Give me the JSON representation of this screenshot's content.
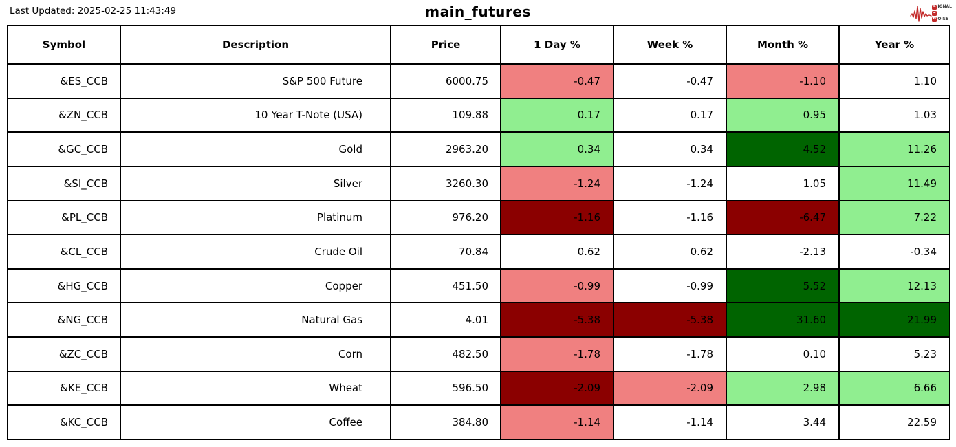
{
  "page": {
    "last_updated": "Last Updated: 2025-02-25 11:43:49",
    "title": "main_futures"
  },
  "logo": {
    "line1_boxed": "S",
    "line1_rest": "IGNAL",
    "line2_boxed": "2",
    "line2_rest": "",
    "line3_boxed": "N",
    "line3_rest": "OISE"
  },
  "colors": {
    "positive_light": "#90ee90",
    "positive_dark": "#006400",
    "negative_light": "#f08080",
    "negative_dark": "#8b0000",
    "logo_red": "#c32a2a",
    "border": "#000000"
  },
  "table": {
    "columns": [
      "Symbol",
      "Description",
      "Price",
      "1 Day %",
      "Week %",
      "Month %",
      "Year %"
    ],
    "rows": [
      {
        "symbol": "&ES_CCB",
        "description": "S&P 500 Future",
        "price": "6000.75",
        "values": [
          "-0.47",
          "-0.47",
          "-1.10",
          "1.10"
        ],
        "value_colors": [
          "negative_light",
          "none",
          "negative_light",
          "none"
        ]
      },
      {
        "symbol": "&ZN_CCB",
        "description": "10 Year T-Note (USA)",
        "price": "109.88",
        "values": [
          "0.17",
          "0.17",
          "0.95",
          "1.03"
        ],
        "value_colors": [
          "positive_light",
          "none",
          "positive_light",
          "none"
        ]
      },
      {
        "symbol": "&GC_CCB",
        "description": "Gold",
        "price": "2963.20",
        "values": [
          "0.34",
          "0.34",
          "4.52",
          "11.26"
        ],
        "value_colors": [
          "positive_light",
          "none",
          "positive_dark",
          "positive_light"
        ]
      },
      {
        "symbol": "&SI_CCB",
        "description": "Silver",
        "price": "3260.30",
        "values": [
          "-1.24",
          "-1.24",
          "1.05",
          "11.49"
        ],
        "value_colors": [
          "negative_light",
          "none",
          "none",
          "positive_light"
        ]
      },
      {
        "symbol": "&PL_CCB",
        "description": "Platinum",
        "price": "976.20",
        "values": [
          "-1.16",
          "-1.16",
          "-6.47",
          "7.22"
        ],
        "value_colors": [
          "negative_dark",
          "none",
          "negative_dark",
          "positive_light"
        ]
      },
      {
        "symbol": "&CL_CCB",
        "description": "Crude Oil",
        "price": "70.84",
        "values": [
          "0.62",
          "0.62",
          "-2.13",
          "-0.34"
        ],
        "value_colors": [
          "none",
          "none",
          "none",
          "none"
        ]
      },
      {
        "symbol": "&HG_CCB",
        "description": "Copper",
        "price": "451.50",
        "values": [
          "-0.99",
          "-0.99",
          "5.52",
          "12.13"
        ],
        "value_colors": [
          "negative_light",
          "none",
          "positive_dark",
          "positive_light"
        ]
      },
      {
        "symbol": "&NG_CCB",
        "description": "Natural Gas",
        "price": "4.01",
        "values": [
          "-5.38",
          "-5.38",
          "31.60",
          "21.99"
        ],
        "value_colors": [
          "negative_dark",
          "negative_dark",
          "positive_dark",
          "positive_dark"
        ]
      },
      {
        "symbol": "&ZC_CCB",
        "description": "Corn",
        "price": "482.50",
        "values": [
          "-1.78",
          "-1.78",
          "0.10",
          "5.23"
        ],
        "value_colors": [
          "negative_light",
          "none",
          "none",
          "none"
        ]
      },
      {
        "symbol": "&KE_CCB",
        "description": "Wheat",
        "price": "596.50",
        "values": [
          "-2.09",
          "-2.09",
          "2.98",
          "6.66"
        ],
        "value_colors": [
          "negative_dark",
          "negative_light",
          "positive_light",
          "positive_light"
        ]
      },
      {
        "symbol": "&KC_CCB",
        "description": "Coffee",
        "price": "384.80",
        "values": [
          "-1.14",
          "-1.14",
          "3.44",
          "22.59"
        ],
        "value_colors": [
          "negative_light",
          "none",
          "none",
          "none"
        ]
      }
    ]
  },
  "chart_data": {
    "type": "table",
    "title": "main_futures",
    "last_updated": "2025-02-25 11:43:49",
    "columns": [
      "Symbol",
      "Description",
      "Price",
      "1 Day %",
      "Week %",
      "Month %",
      "Year %"
    ],
    "rows": [
      [
        "&ES_CCB",
        "S&P 500 Future",
        6000.75,
        -0.47,
        -0.47,
        -1.1,
        1.1
      ],
      [
        "&ZN_CCB",
        "10 Year T-Note (USA)",
        109.88,
        0.17,
        0.17,
        0.95,
        1.03
      ],
      [
        "&GC_CCB",
        "Gold",
        2963.2,
        0.34,
        0.34,
        4.52,
        11.26
      ],
      [
        "&SI_CCB",
        "Silver",
        3260.3,
        -1.24,
        -1.24,
        1.05,
        11.49
      ],
      [
        "&PL_CCB",
        "Platinum",
        976.2,
        -1.16,
        -1.16,
        -6.47,
        7.22
      ],
      [
        "&CL_CCB",
        "Crude Oil",
        70.84,
        0.62,
        0.62,
        -2.13,
        -0.34
      ],
      [
        "&HG_CCB",
        "Copper",
        451.5,
        -0.99,
        -0.99,
        5.52,
        12.13
      ],
      [
        "&NG_CCB",
        "Natural Gas",
        4.01,
        -5.38,
        -5.38,
        31.6,
        21.99
      ],
      [
        "&ZC_CCB",
        "Corn",
        482.5,
        -1.78,
        -1.78,
        0.1,
        5.23
      ],
      [
        "&KE_CCB",
        "Wheat",
        596.5,
        -2.09,
        -2.09,
        2.98,
        6.66
      ],
      [
        "&KC_CCB",
        "Coffee",
        384.8,
        -1.14,
        -1.14,
        3.44,
        22.59
      ]
    ],
    "highlight_rule": "percent cells shaded light/dark red for negative and light/dark green for positive by magnitude; neutral cells white"
  }
}
